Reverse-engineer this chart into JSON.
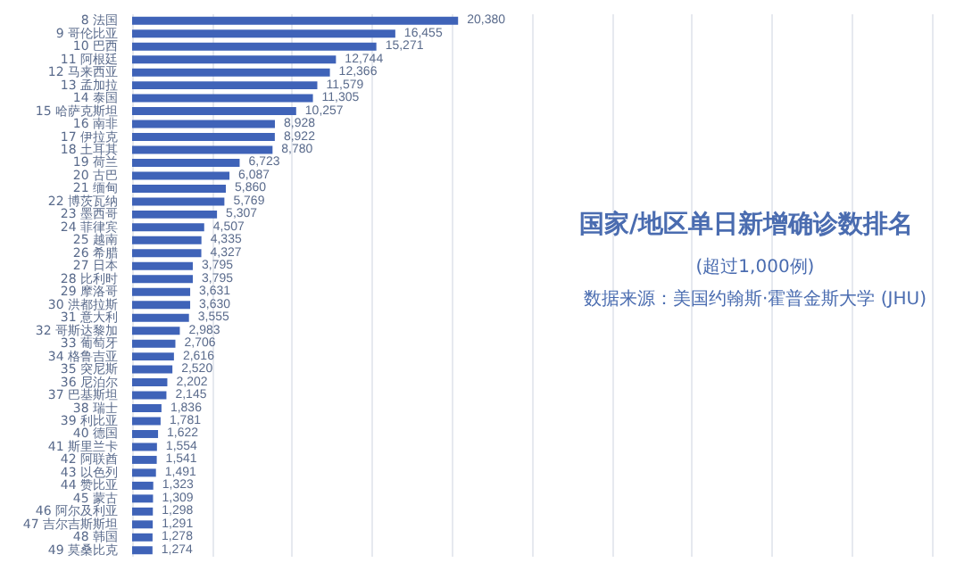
{
  "chart_data": {
    "type": "bar",
    "orientation": "horizontal",
    "title": "国家/地区单日新增确诊数排名",
    "subtitle": "(超过1,000例)",
    "annotations": [
      "数据来源：美国约翰斯·霍普金斯大学 (JHU)"
    ],
    "categories": [
      "8 法国",
      "9 哥伦比亚",
      "10 巴西",
      "11 阿根廷",
      "12 马来西亚",
      "13 孟加拉",
      "14 泰国",
      "15 哈萨克斯坦",
      "16 南非",
      "17 伊拉克",
      "18 土耳其",
      "19 荷兰",
      "20 古巴",
      "21 缅甸",
      "22 博茨瓦纳",
      "23 墨西哥",
      "24 菲律宾",
      "25 越南",
      "26 希腊",
      "27 日本",
      "28 比利时",
      "29 摩洛哥",
      "30 洪都拉斯",
      "31 意大利",
      "32 哥斯达黎加",
      "33 葡萄牙",
      "34 格鲁吉亚",
      "35 突尼斯",
      "36 尼泊尔",
      "37 巴基斯坦",
      "38 瑞士",
      "39 利比亚",
      "40 德国",
      "41 斯里兰卡",
      "42 阿联酋",
      "43 以色列",
      "44 赞比亚",
      "45 蒙古",
      "46 阿尔及利亚",
      "47 吉尔吉斯斯坦",
      "48 韩国",
      "49 莫桑比克"
    ],
    "values": [
      20380,
      16455,
      15271,
      12744,
      12366,
      11579,
      11305,
      10257,
      8928,
      8922,
      8780,
      6723,
      6087,
      5860,
      5769,
      5307,
      4507,
      4335,
      4327,
      3795,
      3795,
      3631,
      3630,
      3555,
      2983,
      2706,
      2616,
      2520,
      2202,
      2145,
      1836,
      1781,
      1622,
      1554,
      1541,
      1491,
      1323,
      1309,
      1298,
      1291,
      1278,
      1274
    ],
    "value_labels": [
      "20,380",
      "16,455",
      "15,271",
      "12,744",
      "12,366",
      "11,579",
      "11,305",
      "10,257",
      "8,928",
      "8,922",
      "8,780",
      "6,723",
      "6,087",
      "5,860",
      "5,769",
      "5,307",
      "4,507",
      "4,335",
      "4,327",
      "3,795",
      "3,795",
      "3,631",
      "3,630",
      "3,555",
      "2,983",
      "2,706",
      "2,616",
      "2,520",
      "2,202",
      "2,145",
      "1,836",
      "1,781",
      "1,622",
      "1,554",
      "1,541",
      "1,491",
      "1,323",
      "1,309",
      "1,298",
      "1,291",
      "1,278",
      "1,274"
    ],
    "color": "#3f63b8",
    "xlim": [
      0,
      50000
    ],
    "xticks": [
      {
        "value": 0,
        "label": null
      },
      {
        "value": 5000,
        "label": null
      },
      {
        "value": 10000,
        "label": null
      },
      {
        "value": 15000,
        "label": null
      },
      {
        "value": 20000,
        "label": null
      },
      {
        "value": 25000,
        "label": null
      },
      {
        "value": 30000,
        "label": null
      },
      {
        "value": 35000,
        "label": null
      },
      {
        "value": 40000,
        "label": null
      },
      {
        "value": 45000,
        "label": null
      },
      {
        "value": 50000,
        "label": null
      }
    ],
    "grid": "x",
    "tick_labels": "y"
  }
}
